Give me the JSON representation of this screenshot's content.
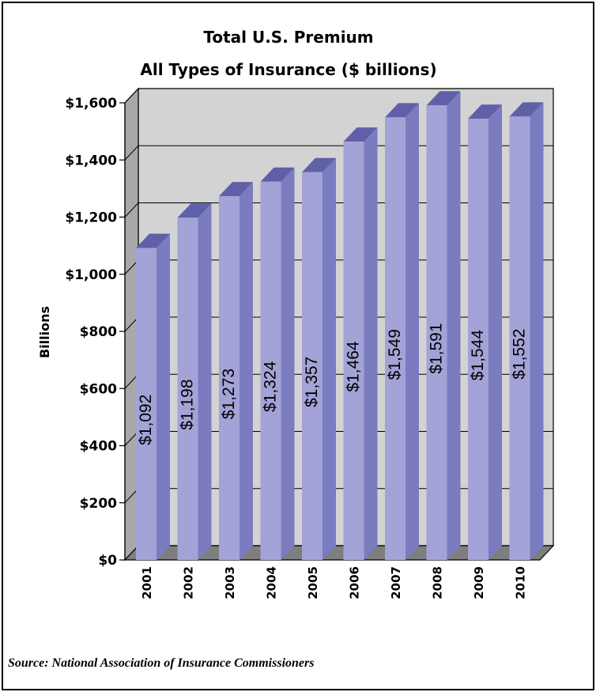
{
  "chart_data": {
    "type": "bar",
    "title": [
      "Total U.S. Premium",
      "All Types of Insurance ($ billions)"
    ],
    "ylabel": "Billions",
    "xlabel": "",
    "categories": [
      "2001",
      "2002",
      "2003",
      "2004",
      "2005",
      "2006",
      "2007",
      "2008",
      "2009",
      "2010"
    ],
    "values": [
      1092,
      1198,
      1273,
      1324,
      1357,
      1464,
      1549,
      1591,
      1544,
      1552
    ],
    "value_labels": [
      "$1,092",
      "$1,198",
      "$1,273",
      "$1,324",
      "$1,357",
      "$1,464",
      "$1,549",
      "$1,591",
      "$1,544",
      "$1,552"
    ],
    "ylim": [
      0,
      1600
    ],
    "yticks": [
      0,
      200,
      400,
      600,
      800,
      1000,
      1200,
      1400,
      1600
    ],
    "ytick_labels": [
      "$0",
      "$200",
      "$400",
      "$600",
      "$800",
      "$1,000",
      "$1,200",
      "$1,400",
      "$1,600"
    ],
    "grid": true,
    "style": "3d",
    "colors": {
      "bar_front": "#A3A3D8",
      "bar_side": "#7B7BC0",
      "bar_top": "#6060A8",
      "back_wall": "#D3D3D3",
      "side_wall": "#A8A8A8",
      "floor": "#7E7E7E"
    }
  },
  "source": "Source: National Association of Insurance Commissioners"
}
